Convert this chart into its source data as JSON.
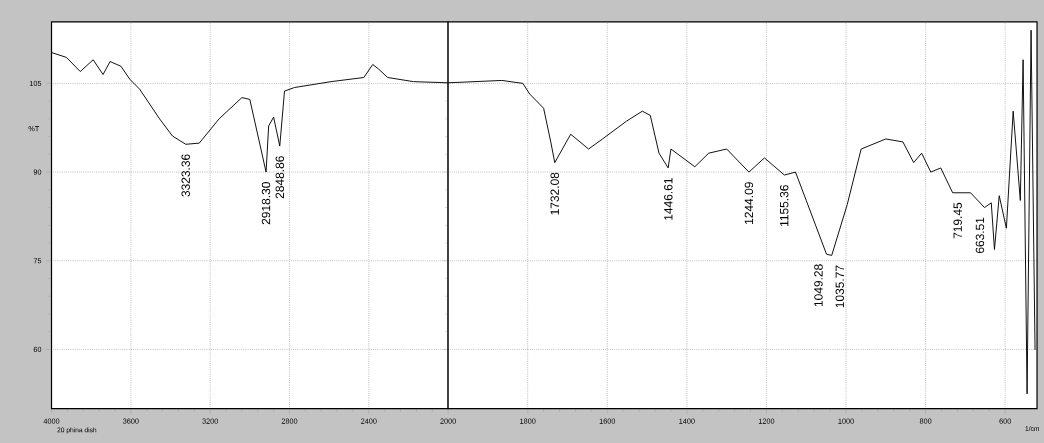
{
  "chart_data": [
    {
      "type": "line",
      "ylabel": "%T",
      "color": "#000000",
      "grid": true,
      "xlim": [
        4000,
        2000
      ],
      "ylim": [
        50,
        115.4
      ],
      "xticks": [
        4000,
        3600,
        3200,
        2800,
        2400,
        2000
      ],
      "yticks": [
        60,
        75,
        90,
        105
      ],
      "x": [
        3998,
        3925,
        3855,
        3790,
        3740,
        3705,
        3650,
        3605,
        3555,
        3455,
        3390,
        3323,
        3255,
        3155,
        3040,
        3000,
        2918,
        2905,
        2880,
        2849,
        2825,
        2775,
        2590,
        2425,
        2380,
        2350,
        2305,
        2175,
        2000
      ],
      "values": [
        110.2,
        109.4,
        107.0,
        109.0,
        106.5,
        108.7,
        107.9,
        105.7,
        104.0,
        99.0,
        96.1,
        94.7,
        94.9,
        99.0,
        102.6,
        102.3,
        90.0,
        97.8,
        99.3,
        94.4,
        103.7,
        104.3,
        105.3,
        106.0,
        108.2,
        107.4,
        106.0,
        105.3,
        105.1
      ],
      "annotations": [
        {
          "text": "3323.36",
          "x": 3323.36,
          "y": 94.7
        },
        {
          "text": "2918.30",
          "x": 2918.3,
          "y": 90.0
        },
        {
          "text": "2848.86",
          "x": 2848.86,
          "y": 94.4
        },
        "20 phina dish"
      ]
    },
    {
      "type": "line",
      "xlabel": "1/cm",
      "color": "#000000",
      "grid": true,
      "tick_labels": "x",
      "xlim": [
        2000,
        520
      ],
      "ylim": [
        50,
        115.4
      ],
      "xticks": [
        1800,
        1600,
        1400,
        1200,
        1000,
        800,
        600
      ],
      "yticks": [
        60,
        75,
        90,
        105
      ],
      "x": [
        2000,
        1865,
        1812,
        1795,
        1760,
        1742,
        1732,
        1692,
        1647,
        1612,
        1552,
        1512,
        1492,
        1470,
        1447,
        1440,
        1380,
        1345,
        1300,
        1244,
        1205,
        1155,
        1127,
        1100,
        1049,
        1036,
        997,
        962,
        900,
        857,
        830,
        810,
        787,
        762,
        732,
        687,
        652,
        635,
        627,
        615,
        597,
        580,
        562,
        555,
        545,
        535,
        525
      ],
      "values": [
        105.1,
        105.5,
        105.0,
        103.2,
        100.8,
        95.1,
        91.6,
        96.4,
        93.9,
        95.6,
        98.6,
        100.3,
        99.6,
        93.2,
        90.7,
        93.9,
        90.9,
        93.2,
        93.9,
        90.0,
        92.4,
        89.5,
        90.0,
        85.2,
        76.1,
        75.9,
        84.5,
        93.9,
        95.6,
        95.1,
        91.6,
        93.2,
        90.0,
        90.7,
        86.5,
        86.5,
        84.0,
        84.8,
        76.9,
        86.0,
        80.5,
        100.3,
        85.2,
        109.0,
        52.5,
        114.0,
        60.0
      ],
      "annotations": [
        {
          "text": "1732.08",
          "x": 1732.08,
          "y": 91.6
        },
        {
          "text": "1446.61",
          "x": 1446.61,
          "y": 90.7
        },
        {
          "text": "1244.09",
          "x": 1244.09,
          "y": 90.0
        },
        {
          "text": "1155.36",
          "x": 1155.36,
          "y": 89.5
        },
        {
          "text": "1049.28",
          "x": 1049.28,
          "y": 76.1
        },
        {
          "text": "1035.77",
          "x": 1035.77,
          "y": 75.9
        },
        {
          "text": "719.45",
          "x": 719.45,
          "y": 86.5
        },
        {
          "text": "663.51",
          "x": 663.51,
          "y": 84.0
        }
      ]
    }
  ]
}
